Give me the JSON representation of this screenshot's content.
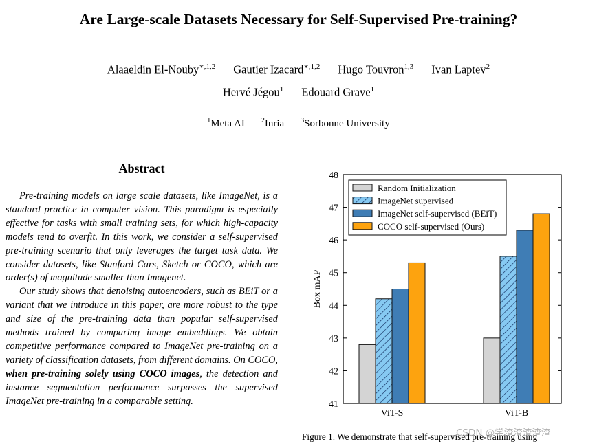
{
  "paper": {
    "title": "Are Large-scale Datasets Necessary for Self-Supervised Pre-training?",
    "authors_row1": [
      {
        "name": "Alaaeldin El-Nouby",
        "sup": "∗,1,2"
      },
      {
        "name": "Gautier Izacard",
        "sup": "∗,1,2"
      },
      {
        "name": "Hugo Touvron",
        "sup": "1,3"
      },
      {
        "name": "Ivan Laptev",
        "sup": "2"
      }
    ],
    "authors_row2": [
      {
        "name": "Hervé Jégou",
        "sup": "1"
      },
      {
        "name": "Edouard Grave",
        "sup": "1"
      }
    ],
    "affiliations": [
      {
        "sup": "1",
        "name": "Meta AI"
      },
      {
        "sup": "2",
        "name": "Inria"
      },
      {
        "sup": "3",
        "name": "Sorbonne University"
      }
    ]
  },
  "abstract": {
    "heading": "Abstract",
    "p1": "Pre-training models on large scale datasets, like ImageNet, is a standard practice in computer vision. This paradigm is especially effective for tasks with small training sets, for which high-capacity models tend to overfit. In this work, we consider a self-supervised pre-training scenario that only leverages the target task data. We consider datasets, like Stanford Cars, Sketch or COCO, which are order(s) of magnitude smaller than Imagenet.",
    "p2_before": "Our study shows that denoising autoencoders, such as BEiT or a variant that we introduce in this paper, are more robust to the type and size of the pre-training data than popular self-supervised methods trained by comparing image embeddings. We obtain competitive performance compared to ImageNet pre-training on a variety of classification datasets, from different domains. On COCO, ",
    "p2_bold": "when pre-training solely using COCO images",
    "p2_after": ", the detection and instance segmentation performance surpasses the supervised ImageNet pre-training in a comparable setting."
  },
  "chart_data": {
    "type": "bar",
    "title": "",
    "xlabel": "",
    "ylabel": "Box mAP",
    "ylim": [
      41,
      48
    ],
    "yticks": [
      "41",
      "42",
      "43",
      "44",
      "45",
      "46",
      "47",
      "48"
    ],
    "categories": [
      "ViT-S",
      "ViT-B"
    ],
    "legend_position": "top-left",
    "series": [
      {
        "name": "Random Initialization",
        "values": [
          42.8,
          43.0
        ],
        "color": "#d4d4d4",
        "hatch": false
      },
      {
        "name": "ImageNet supervised",
        "values": [
          44.2,
          45.5
        ],
        "color": "#86c9f2",
        "hatch": true
      },
      {
        "name": "ImageNet self-supervised (BEiT)",
        "values": [
          44.5,
          46.3
        ],
        "color": "#3f7db5",
        "hatch": false
      },
      {
        "name": "COCO self-supervised (Ours)",
        "values": [
          45.3,
          46.8
        ],
        "color": "#fda30f",
        "hatch": false
      }
    ]
  },
  "figure": {
    "caption": "Figure 1.  We demonstrate that self-supervised pre-training using"
  },
  "watermark": "CSDN @学渣渣渣渣渣"
}
